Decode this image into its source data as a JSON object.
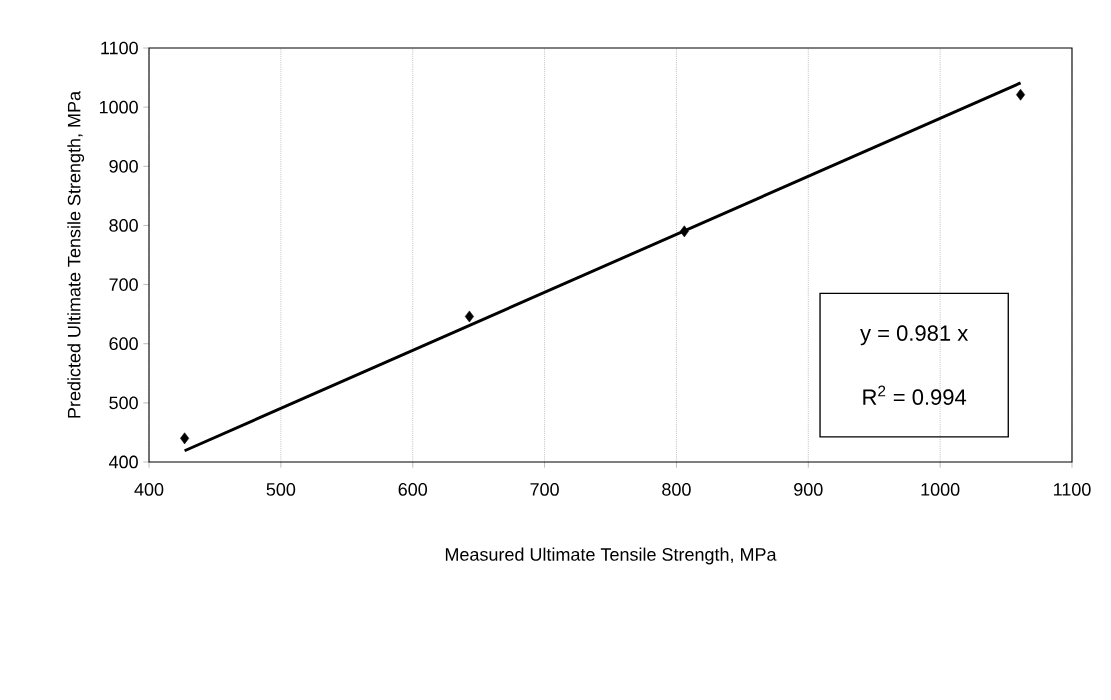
{
  "chart_data": {
    "type": "scatter",
    "xlabel": "Measured Ultimate Tensile Strength, MPa",
    "ylabel": "Predicted Ultimate Tensile Strength, MPa",
    "xlim": [
      400,
      1100
    ],
    "xticks": [
      400,
      500,
      600,
      700,
      800,
      900,
      1000,
      1100
    ],
    "ylim": [
      400,
      1100
    ],
    "yticks": [
      400,
      500,
      600,
      700,
      800,
      900,
      1000,
      1100
    ],
    "grid": "x",
    "annotations": [
      "y = 0.981 x",
      "R$^{2}$ = 0.994"
    ],
    "series": [
      {
        "marker": "diamond",
        "color": "#000000",
        "x": [
          427,
          643,
          806,
          1061
        ],
        "values": [
          440,
          646,
          790,
          1021
        ]
      },
      {
        "type": "line",
        "marker": "none",
        "color": "#000000",
        "line_style": "solid",
        "x": [
          427,
          1061
        ],
        "values": [
          419,
          1041
        ]
      }
    ]
  }
}
